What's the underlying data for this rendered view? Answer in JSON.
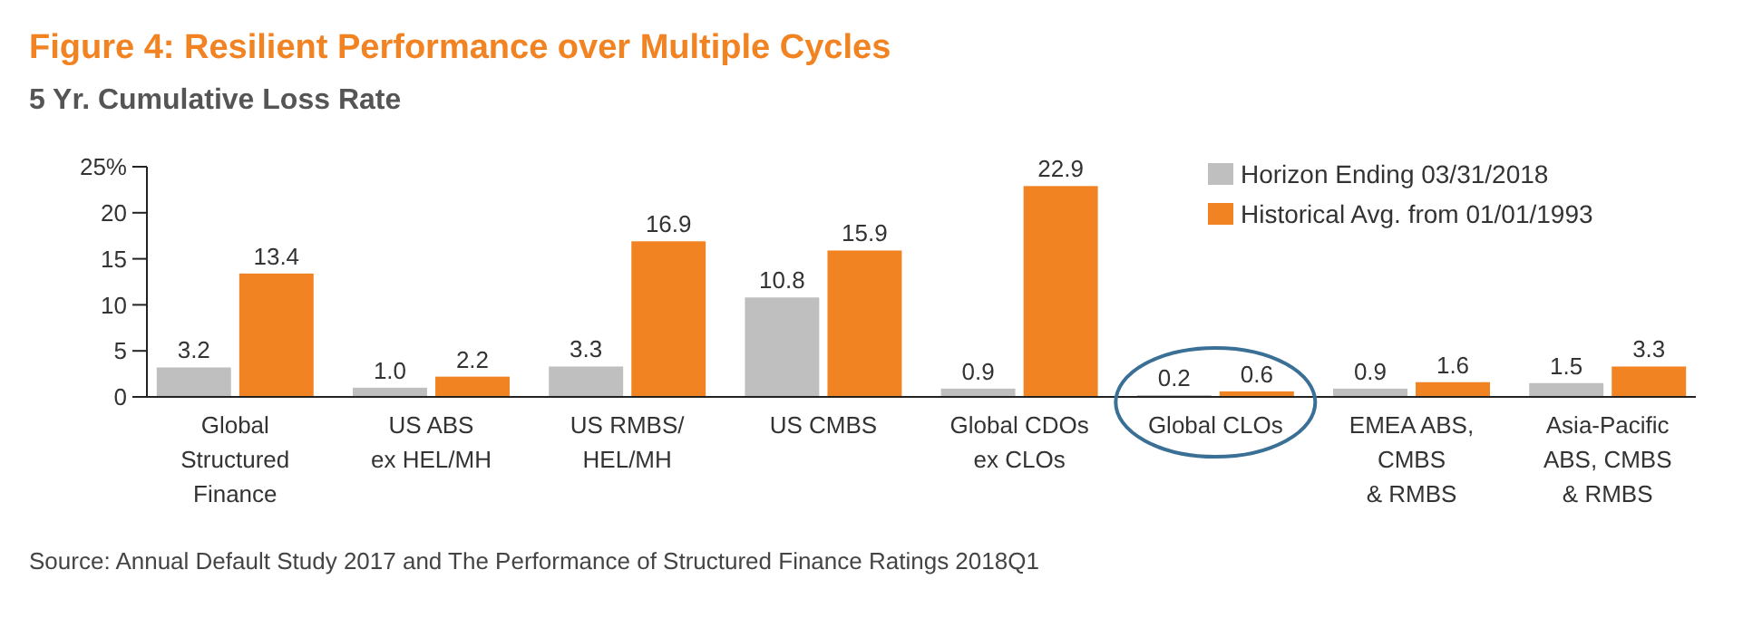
{
  "chart_data": {
    "type": "bar",
    "title": "Figure 4: Resilient Performance over Multiple Cycles",
    "subtitle": "5 Yr. Cumulative Loss Rate",
    "categories": [
      "Global\nStructured\nFinance",
      "US ABS\nex HEL/MH",
      "US RMBS/\nHEL/MH",
      "US CMBS",
      "Global CDOs\nex CLOs",
      "Global CLOs",
      "EMEA ABS,\nCMBS\n& RMBS",
      "Asia-Pacific\nABS, CMBS\n& RMBS"
    ],
    "series": [
      {
        "name": "Horizon Ending 03/31/2018",
        "color": "#bfbfbf",
        "values": [
          3.2,
          1.0,
          3.3,
          10.8,
          0.9,
          0.2,
          0.9,
          1.5
        ],
        "value_labels": [
          "3.2",
          "1.0",
          "3.3",
          "10.8",
          "0.9",
          "0.2",
          "0.9",
          "1.5"
        ]
      },
      {
        "name": "Historical Avg. from 01/01/1993",
        "color": "#f28322",
        "values": [
          13.4,
          2.2,
          16.9,
          15.9,
          22.9,
          0.6,
          1.6,
          3.3
        ],
        "value_labels": [
          "13.4",
          "2.2",
          "16.9",
          "15.9",
          "22.9",
          "0.6",
          "1.6",
          "3.3"
        ]
      }
    ],
    "ylim": [
      0,
      25
    ],
    "yticks": [
      0,
      5,
      10,
      15,
      20,
      {
        "value": 25,
        "label": "25%"
      }
    ],
    "grid": false,
    "legend": "top right",
    "annotations": [
      "Source: Annual Default Study 2017 and The Performance of Structured Finance Ratings 2018Q1"
    ]
  }
}
